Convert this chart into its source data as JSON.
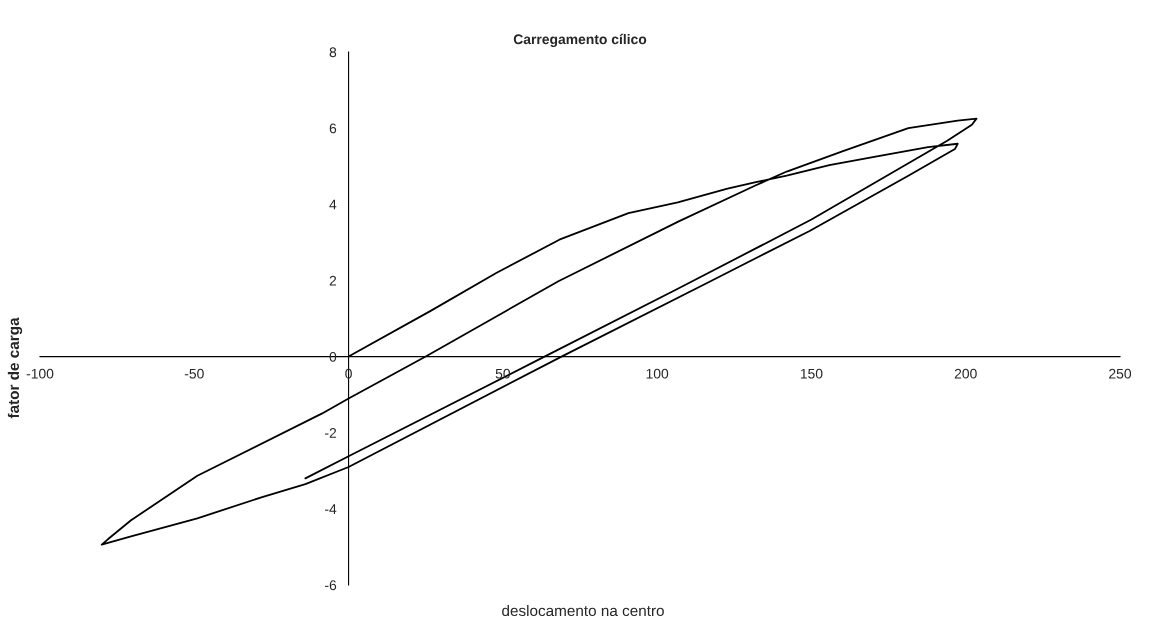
{
  "chart_data": {
    "type": "line",
    "title": "Carregamento cílico",
    "xlabel": "deslocamento na centro",
    "ylabel": "fator de carga",
    "series": [
      {
        "color": "#000000",
        "x": [
          0,
          26.6,
          48,
          68.3,
          90.7,
          106.7,
          122.8,
          132,
          142,
          155.8,
          170.8,
          187.8,
          197.4,
          196.5,
          181.4,
          149.4,
          117.3,
          69,
          0,
          -14,
          -28,
          -49,
          -70.5,
          -80,
          -78,
          -70.5,
          -49,
          -8.7,
          0,
          25,
          68,
          107,
          132,
          142,
          160,
          181.4,
          197.4,
          203.5,
          202,
          194,
          150,
          106.7,
          63.5,
          0,
          -14
        ],
        "values": [
          0,
          1.2,
          2.2,
          3.07,
          3.77,
          4.05,
          4.41,
          4.58,
          4.75,
          5.03,
          5.25,
          5.5,
          5.59,
          5.45,
          4.75,
          3.3,
          1.98,
          0,
          -2.9,
          -3.35,
          -3.69,
          -4.25,
          -4.72,
          -4.94,
          -4.8,
          -4.3,
          -3.13,
          -1.5,
          -1.1,
          0,
          1.98,
          3.55,
          4.5,
          4.86,
          5.39,
          6.0,
          6.2,
          6.25,
          6.09,
          5.67,
          3.6,
          1.78,
          0,
          -2.62,
          -3.2
        ]
      }
    ],
    "xlim": [
      -100,
      250
    ],
    "ylim": [
      -6,
      8
    ],
    "xticks": [
      -100,
      -50,
      0,
      50,
      100,
      150,
      200,
      250
    ],
    "yticks": [
      -6,
      -4,
      -2,
      0,
      2,
      4,
      6,
      8
    ],
    "grid": false,
    "legend": false,
    "marker": "none",
    "line_style": "solid"
  }
}
